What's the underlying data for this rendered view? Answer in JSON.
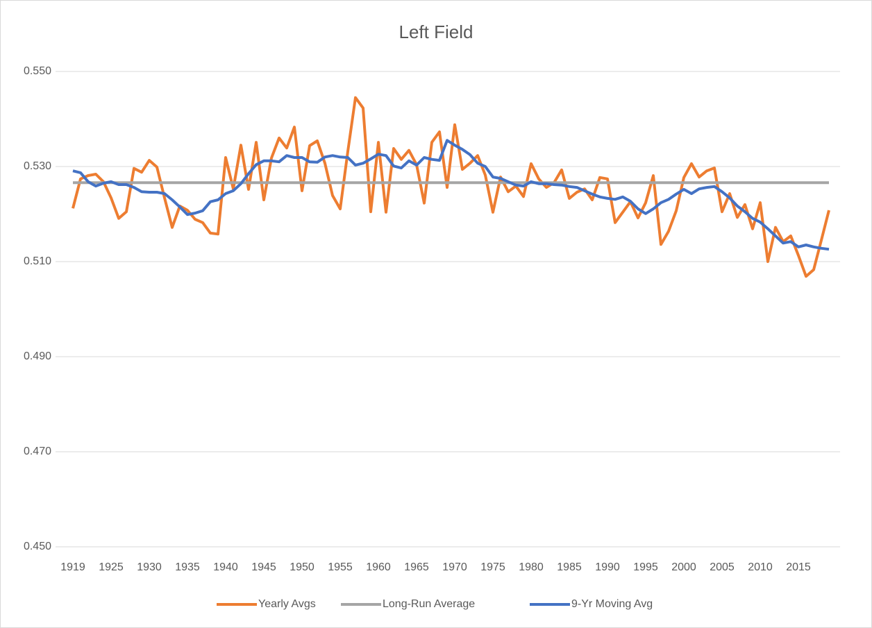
{
  "chart_data": {
    "type": "line",
    "title": "Left Field",
    "categories": [
      "1919",
      null,
      null,
      null,
      null,
      "1925",
      null,
      null,
      null,
      null,
      "1930",
      null,
      null,
      null,
      null,
      "1935",
      null,
      null,
      null,
      null,
      "1940",
      null,
      null,
      null,
      null,
      "1945",
      null,
      null,
      null,
      null,
      "1950",
      null,
      null,
      null,
      null,
      "1955",
      null,
      null,
      null,
      null,
      "1960",
      null,
      null,
      null,
      null,
      "1965",
      null,
      null,
      null,
      null,
      "1970",
      null,
      null,
      null,
      null,
      "1975",
      null,
      null,
      null,
      null,
      "1980",
      null,
      null,
      null,
      null,
      "1985",
      null,
      null,
      null,
      null,
      "1990",
      null,
      null,
      null,
      null,
      "1995",
      null,
      null,
      null,
      null,
      "2000",
      null,
      null,
      null,
      null,
      "2005",
      null,
      null,
      null,
      null,
      "2010",
      null,
      null,
      null,
      null,
      "2015",
      null,
      null,
      null,
      null
    ],
    "series": [
      {
        "name": "Yearly Avgs",
        "color": "#ED7D31",
        "values": [
          0.5212,
          0.5274,
          0.5281,
          0.5284,
          0.5268,
          0.5234,
          0.5191,
          0.5205,
          0.5296,
          0.5288,
          0.5313,
          0.5299,
          0.5234,
          0.5172,
          0.5217,
          0.5208,
          0.5189,
          0.5182,
          0.516,
          0.5158,
          0.5319,
          0.5253,
          0.5345,
          0.5252,
          0.5351,
          0.523,
          0.5318,
          0.536,
          0.5339,
          0.5383,
          0.5249,
          0.5344,
          0.5354,
          0.5307,
          0.5239,
          0.5211,
          0.5332,
          0.5445,
          0.5423,
          0.5205,
          0.5351,
          0.5204,
          0.5338,
          0.5315,
          0.5334,
          0.5304,
          0.5223,
          0.5351,
          0.5373,
          0.5256,
          0.5388,
          0.5294,
          0.5307,
          0.5323,
          0.5282,
          0.5204,
          0.5278,
          0.5247,
          0.5259,
          0.5237,
          0.5306,
          0.5274,
          0.5256,
          0.5266,
          0.5293,
          0.5233,
          0.5246,
          0.5253,
          0.523,
          0.5277,
          0.5274,
          0.5182,
          0.5204,
          0.5226,
          0.5192,
          0.5224,
          0.5281,
          0.5136,
          0.5164,
          0.5207,
          0.5277,
          0.5306,
          0.5278,
          0.5291,
          0.5297,
          0.5205,
          0.5243,
          0.5193,
          0.522,
          0.5169,
          0.5224,
          0.51,
          0.5172,
          0.5142,
          0.5154,
          0.5113,
          0.5069,
          0.5083,
          0.5145,
          0.5208
        ]
      },
      {
        "name": "Long-Run Average",
        "color": "#A5A5A5",
        "values": [
          0.5266,
          0.5266,
          0.5266,
          0.5266,
          0.5266,
          0.5266,
          0.5266,
          0.5266,
          0.5266,
          0.5266,
          0.5266,
          0.5266,
          0.5266,
          0.5266,
          0.5266,
          0.5266,
          0.5266,
          0.5266,
          0.5266,
          0.5266,
          0.5266,
          0.5266,
          0.5266,
          0.5266,
          0.5266,
          0.5266,
          0.5266,
          0.5266,
          0.5266,
          0.5266,
          0.5266,
          0.5266,
          0.5266,
          0.5266,
          0.5266,
          0.5266,
          0.5266,
          0.5266,
          0.5266,
          0.5266,
          0.5266,
          0.5266,
          0.5266,
          0.5266,
          0.5266,
          0.5266,
          0.5266,
          0.5266,
          0.5266,
          0.5266,
          0.5266,
          0.5266,
          0.5266,
          0.5266,
          0.5266,
          0.5266,
          0.5266,
          0.5266,
          0.5266,
          0.5266,
          0.5266,
          0.5266,
          0.5266,
          0.5266,
          0.5266,
          0.5266,
          0.5266,
          0.5266,
          0.5266,
          0.5266,
          0.5266,
          0.5266,
          0.5266,
          0.5266,
          0.5266,
          0.5266,
          0.5266,
          0.5266,
          0.5266,
          0.5266,
          0.5266,
          0.5266,
          0.5266,
          0.5266,
          0.5266,
          0.5266,
          0.5266,
          0.5266,
          0.5266,
          0.5266,
          0.5266,
          0.5266,
          0.5266,
          0.5266,
          0.5266,
          0.5266,
          0.5266,
          0.5266,
          0.5266,
          0.5266
        ]
      },
      {
        "name": "9-Yr Moving Avg",
        "color": "#4472C4",
        "values": [
          0.5291,
          0.5287,
          0.5268,
          0.5259,
          0.5265,
          0.5268,
          0.5262,
          0.5262,
          0.5256,
          0.5247,
          0.5246,
          0.5246,
          0.5243,
          0.523,
          0.5215,
          0.5199,
          0.5202,
          0.5207,
          0.5226,
          0.523,
          0.5243,
          0.5249,
          0.5264,
          0.5285,
          0.5304,
          0.5312,
          0.5312,
          0.531,
          0.5323,
          0.5319,
          0.5319,
          0.531,
          0.5309,
          0.532,
          0.5323,
          0.532,
          0.5319,
          0.5303,
          0.5307,
          0.5316,
          0.5326,
          0.5323,
          0.5301,
          0.5297,
          0.5312,
          0.5303,
          0.5319,
          0.5315,
          0.5313,
          0.5355,
          0.5345,
          0.5336,
          0.5325,
          0.5307,
          0.53,
          0.5278,
          0.5275,
          0.5268,
          0.5261,
          0.5259,
          0.5268,
          0.5264,
          0.5264,
          0.5262,
          0.5261,
          0.5258,
          0.5256,
          0.5249,
          0.5242,
          0.5236,
          0.5233,
          0.5231,
          0.5236,
          0.5227,
          0.5211,
          0.5201,
          0.5211,
          0.5224,
          0.5231,
          0.5242,
          0.5252,
          0.5243,
          0.5253,
          0.5256,
          0.5258,
          0.5247,
          0.5234,
          0.5217,
          0.5205,
          0.5191,
          0.5183,
          0.5169,
          0.5154,
          0.5139,
          0.5142,
          0.5131,
          0.5135,
          0.5131,
          0.5128,
          0.5126
        ]
      }
    ],
    "ylim": [
      0.45,
      0.55
    ],
    "yticks": [
      {
        "value": 0.45,
        "label": "0.450"
      },
      {
        "value": 0.47,
        "label": "0.470"
      },
      {
        "value": 0.49,
        "label": "0.490"
      },
      {
        "value": 0.51,
        "label": "0.510"
      },
      {
        "value": 0.53,
        "label": "0.530"
      },
      {
        "value": 0.55,
        "label": "0.550"
      }
    ],
    "grid": true,
    "legend": "bottom"
  }
}
